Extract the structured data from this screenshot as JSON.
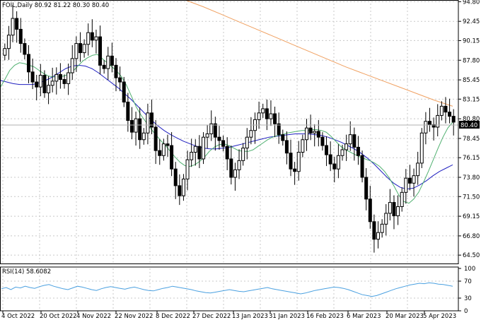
{
  "header": {
    "symbol_line": "FOIL,Daily  80.92 81.22 80.30 80.40"
  },
  "rsi_panel": {
    "label": "RSI(14) 58.6082"
  },
  "last_price_tag": "80.40",
  "chart_data": {
    "type": "candlestick",
    "symbol": "FOIL",
    "timeframe": "Daily",
    "last_bar": {
      "open": 80.92,
      "high": 81.22,
      "low": 80.3,
      "close": 80.4
    },
    "price_axis": {
      "range": [
        63.5,
        95.0
      ],
      "ticks": [
        "94.80",
        "92.45",
        "90.15",
        "87.80",
        "85.45",
        "83.15",
        "80.80",
        "78.45",
        "76.15",
        "73.80",
        "71.50",
        "69.15",
        "66.80",
        "64.50"
      ]
    },
    "rsi_axis": {
      "range": [
        0,
        100
      ],
      "ticks": [
        "100",
        "70",
        "30",
        "0"
      ]
    },
    "x_tick_labels": [
      "4 Oct 2022",
      "20 Oct 2022",
      "4 Nov 2022",
      "22 Nov 2022",
      "8 Dec 2022",
      "27 Dec 2022",
      "13 Jan 2023",
      "31 Jan 2023",
      "16 Feb 2023",
      "6 Mar 2023",
      "20 Mar 2023",
      "5 Apr 2023"
    ],
    "candles_close": [
      89.2,
      90.8,
      92.8,
      91.5,
      89.8,
      88.5,
      86.4,
      85.2,
      84.6,
      86.0,
      83.9,
      84.8,
      85.3,
      86.1,
      85.5,
      85.0,
      86.3,
      88.0,
      89.8,
      88.7,
      89.7,
      91.1,
      90.2,
      90.6,
      87.2,
      86.8,
      88.3,
      87.2,
      85.7,
      85.2,
      82.8,
      80.6,
      79.2,
      80.8,
      78.3,
      79.1,
      81.5,
      79.8,
      77.0,
      76.4,
      77.8,
      77.6,
      74.8,
      72.8,
      71.6,
      73.6,
      75.9,
      76.8,
      77.5,
      76.0,
      78.6,
      79.0,
      80.2,
      78.6,
      78.2,
      77.5,
      76.0,
      73.8,
      74.7,
      75.8,
      77.3,
      78.6,
      79.4,
      80.7,
      81.5,
      82.0,
      80.8,
      81.4,
      80.2,
      78.9,
      78.2,
      76.7,
      74.8,
      74.5,
      76.8,
      78.3,
      79.7,
      79.1,
      79.3,
      78.6,
      77.6,
      76.5,
      75.4,
      74.8,
      76.4,
      77.1,
      77.8,
      78.9,
      77.4,
      76.4,
      73.8,
      71.2,
      68.5,
      66.4,
      67.2,
      68.2,
      69.5,
      70.8,
      69.2,
      70.3,
      72.0,
      73.7,
      73.1,
      74.0,
      75.5,
      79.1,
      80.5,
      80.1,
      79.8,
      81.2,
      82.3,
      81.6,
      81.1,
      80.4
    ],
    "ma_fast_green": [
      84.5,
      85.5,
      86.6,
      87.2,
      87.5,
      87.4,
      87.2,
      87.0,
      86.6,
      86.2,
      85.9,
      85.8,
      85.8,
      85.9,
      86.1,
      86.5,
      87.1,
      87.7,
      88.1,
      88.4,
      88.5,
      88.0,
      87.5,
      87.0,
      86.5,
      85.8,
      84.8,
      83.5,
      82.2,
      81.2,
      80.4,
      79.6,
      78.9,
      78.2,
      77.6,
      76.9,
      76.2,
      75.6,
      75.2,
      75.1,
      75.3,
      75.7,
      76.2,
      76.9,
      77.4,
      77.7,
      77.8,
      77.6,
      77.3,
      77.0,
      76.9,
      76.9,
      77.1,
      77.5,
      77.9,
      78.3,
      78.6,
      78.8,
      78.9,
      79.1,
      79.2,
      79.3,
      79.4,
      79.4,
      79.5,
      79.5,
      79.4,
      79.2,
      78.7,
      78.1,
      77.5,
      77.1,
      76.8,
      76.5,
      76.2,
      76.0,
      75.8,
      75.5,
      75.1,
      74.5,
      73.7,
      72.7,
      71.6,
      70.9,
      70.7,
      71.2,
      72.0,
      73.2,
      74.5,
      75.9,
      77.3,
      78.6,
      79.7,
      80.4
    ],
    "ma_mid_blue": [
      85.4,
      85.2,
      85.0,
      84.9,
      84.9,
      84.9,
      85.1,
      85.4,
      85.8,
      86.3,
      86.8,
      87.1,
      87.2,
      87.1,
      86.8,
      86.3,
      85.7,
      85.1,
      84.5,
      83.8,
      83.1,
      82.3,
      81.5,
      80.7,
      80.0,
      79.4,
      78.9,
      78.5,
      78.1,
      77.8,
      77.5,
      77.3,
      77.2,
      77.2,
      77.3,
      77.4,
      77.6,
      77.8,
      78.0,
      78.2,
      78.4,
      78.6,
      78.7,
      78.8,
      78.9,
      79.0,
      79.0,
      79.0,
      78.9,
      78.8,
      78.6,
      78.3,
      78.0,
      77.6,
      77.2,
      76.7,
      76.1,
      75.4,
      74.6,
      73.8,
      73.1,
      72.6,
      72.4,
      72.5,
      72.9,
      73.4,
      74.0,
      74.5,
      74.9,
      75.3
    ],
    "ma_slow_orange": [
      95.0,
      94.2,
      93.3,
      92.4,
      91.5,
      90.6,
      89.7,
      88.8,
      87.9,
      87.0,
      86.2,
      85.4,
      84.6,
      83.8,
      83.0,
      82.3
    ],
    "rsi_values": [
      52,
      55,
      50,
      56,
      54,
      58,
      55,
      53,
      57,
      60,
      62,
      58,
      55,
      52,
      50,
      54,
      58,
      56,
      53,
      50,
      48,
      52,
      55,
      57,
      55,
      53,
      51,
      54,
      56,
      53,
      50,
      48,
      47,
      50,
      53,
      55,
      58,
      56,
      54,
      52,
      50,
      47,
      45,
      43,
      42,
      44,
      46,
      48,
      50,
      48,
      46,
      45,
      47,
      49,
      51,
      53,
      55,
      52,
      50,
      48,
      46,
      44,
      42,
      40,
      42,
      45,
      48,
      50,
      52,
      54,
      56,
      55,
      53,
      50,
      46,
      42,
      38,
      36,
      34,
      36,
      40,
      44,
      48,
      52,
      55,
      58,
      61,
      63,
      65,
      64,
      66,
      65,
      63,
      62,
      60,
      58
    ]
  }
}
